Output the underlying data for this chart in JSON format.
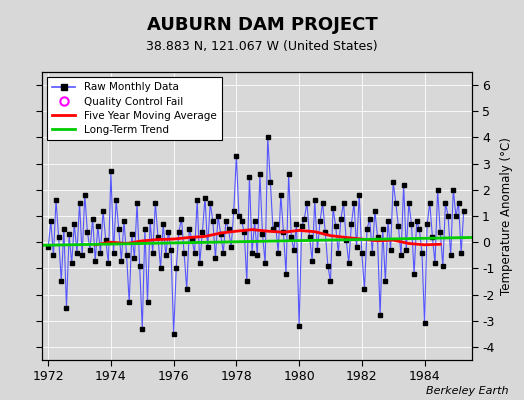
{
  "title": "AUBURN DAM PROJECT",
  "subtitle": "38.883 N, 121.067 W (United States)",
  "ylabel": "Temperature Anomaly (°C)",
  "credit": "Berkeley Earth",
  "xlim": [
    1971.8,
    1985.5
  ],
  "ylim": [
    -4.5,
    6.5
  ],
  "yticks": [
    -4,
    -3,
    -2,
    -1,
    0,
    1,
    2,
    3,
    4,
    5,
    6
  ],
  "xticks": [
    1972,
    1974,
    1976,
    1978,
    1980,
    1982,
    1984
  ],
  "bg_color": "#d8d8d8",
  "plot_bg": "#d8d8d8",
  "raw_color": "#5555ff",
  "ma_color": "#ff0000",
  "trend_color": "#00cc00",
  "qc_color": "#ff00ff",
  "raw_x": [
    1972.0,
    1972.083,
    1972.167,
    1972.25,
    1972.333,
    1972.417,
    1972.5,
    1972.583,
    1972.667,
    1972.75,
    1972.833,
    1972.917,
    1973.0,
    1973.083,
    1973.167,
    1973.25,
    1973.333,
    1973.417,
    1973.5,
    1973.583,
    1973.667,
    1973.75,
    1973.833,
    1973.917,
    1974.0,
    1974.083,
    1974.167,
    1974.25,
    1974.333,
    1974.417,
    1974.5,
    1974.583,
    1974.667,
    1974.75,
    1974.833,
    1974.917,
    1975.0,
    1975.083,
    1975.167,
    1975.25,
    1975.333,
    1975.417,
    1975.5,
    1975.583,
    1975.667,
    1975.75,
    1975.833,
    1975.917,
    1976.0,
    1976.083,
    1976.167,
    1976.25,
    1976.333,
    1976.417,
    1976.5,
    1976.583,
    1976.667,
    1976.75,
    1976.833,
    1976.917,
    1977.0,
    1977.083,
    1977.167,
    1977.25,
    1977.333,
    1977.417,
    1977.5,
    1977.583,
    1977.667,
    1977.75,
    1977.833,
    1977.917,
    1978.0,
    1978.083,
    1978.167,
    1978.25,
    1978.333,
    1978.417,
    1978.5,
    1978.583,
    1978.667,
    1978.75,
    1978.833,
    1978.917,
    1979.0,
    1979.083,
    1979.167,
    1979.25,
    1979.333,
    1979.417,
    1979.5,
    1979.583,
    1979.667,
    1979.75,
    1979.833,
    1979.917,
    1980.0,
    1980.083,
    1980.167,
    1980.25,
    1980.333,
    1980.417,
    1980.5,
    1980.583,
    1980.667,
    1980.75,
    1980.833,
    1980.917,
    1981.0,
    1981.083,
    1981.167,
    1981.25,
    1981.333,
    1981.417,
    1981.5,
    1981.583,
    1981.667,
    1981.75,
    1981.833,
    1981.917,
    1982.0,
    1982.083,
    1982.167,
    1982.25,
    1982.333,
    1982.417,
    1982.5,
    1982.583,
    1982.667,
    1982.75,
    1982.833,
    1982.917,
    1983.0,
    1983.083,
    1983.167,
    1983.25,
    1983.333,
    1983.417,
    1983.5,
    1983.583,
    1983.667,
    1983.75,
    1983.833,
    1983.917,
    1984.0,
    1984.083,
    1984.167,
    1984.25,
    1984.333,
    1984.417,
    1984.5,
    1984.583,
    1984.667,
    1984.75,
    1984.833,
    1984.917,
    1985.0,
    1985.083,
    1985.167,
    1985.25
  ],
  "raw_y": [
    -0.2,
    0.8,
    -0.5,
    1.6,
    0.2,
    -1.5,
    0.5,
    -2.5,
    0.3,
    -0.8,
    0.7,
    -0.4,
    1.5,
    -0.5,
    1.8,
    0.4,
    -0.3,
    0.9,
    -0.7,
    0.6,
    -0.4,
    1.2,
    0.1,
    -0.8,
    2.7,
    -0.4,
    1.6,
    0.5,
    -0.7,
    0.8,
    -0.5,
    -2.3,
    0.3,
    -0.6,
    1.5,
    -0.9,
    -3.3,
    0.5,
    -2.3,
    0.8,
    -0.4,
    1.5,
    0.2,
    -1.0,
    0.7,
    -0.5,
    0.4,
    -0.3,
    -3.5,
    -1.0,
    0.4,
    0.9,
    -0.4,
    -1.8,
    0.5,
    0.1,
    -0.4,
    1.6,
    -0.8,
    0.4,
    1.7,
    -0.2,
    1.5,
    0.8,
    -0.6,
    1.0,
    0.3,
    -0.4,
    0.8,
    0.5,
    -0.2,
    1.2,
    3.3,
    1.0,
    0.8,
    0.4,
    -1.5,
    2.5,
    -0.4,
    0.8,
    -0.5,
    2.6,
    0.3,
    -0.8,
    4.0,
    2.3,
    0.5,
    0.7,
    -0.4,
    1.8,
    0.4,
    -1.2,
    2.6,
    0.2,
    -0.3,
    0.7,
    -3.2,
    0.6,
    0.9,
    1.5,
    0.2,
    -0.7,
    1.6,
    -0.3,
    0.8,
    1.5,
    0.4,
    -0.9,
    -1.5,
    1.3,
    0.6,
    -0.4,
    0.9,
    1.5,
    0.1,
    -0.8,
    0.7,
    1.5,
    -0.2,
    1.8,
    -0.4,
    -1.8,
    0.5,
    0.9,
    -0.4,
    1.2,
    0.2,
    -2.8,
    0.5,
    -1.5,
    0.8,
    -0.3,
    2.3,
    1.5,
    0.6,
    -0.5,
    2.2,
    -0.3,
    1.5,
    0.7,
    -1.2,
    0.8,
    0.5,
    -0.4,
    -3.1,
    0.7,
    1.5,
    0.2,
    -0.8,
    2.0,
    0.4,
    -0.9,
    1.5,
    1.0,
    -0.5,
    2.0,
    1.0,
    1.5,
    -0.4,
    1.2
  ],
  "ma_x": [
    1973.5,
    1974.0,
    1974.5,
    1975.0,
    1975.5,
    1976.0,
    1976.5,
    1977.0,
    1977.5,
    1978.0,
    1978.5,
    1979.0,
    1979.5,
    1980.0,
    1980.5,
    1981.0,
    1981.5,
    1982.0,
    1982.5,
    1983.0,
    1983.5,
    1984.0,
    1984.5
  ],
  "ma_y": [
    -0.1,
    0.0,
    -0.05,
    0.05,
    0.1,
    0.12,
    0.18,
    0.22,
    0.35,
    0.42,
    0.48,
    0.42,
    0.38,
    0.45,
    0.4,
    0.25,
    0.18,
    0.12,
    0.05,
    0.08,
    -0.05,
    -0.1,
    -0.08
  ],
  "trend_x": [
    1971.8,
    1985.5
  ],
  "trend_y": [
    -0.12,
    0.18
  ]
}
